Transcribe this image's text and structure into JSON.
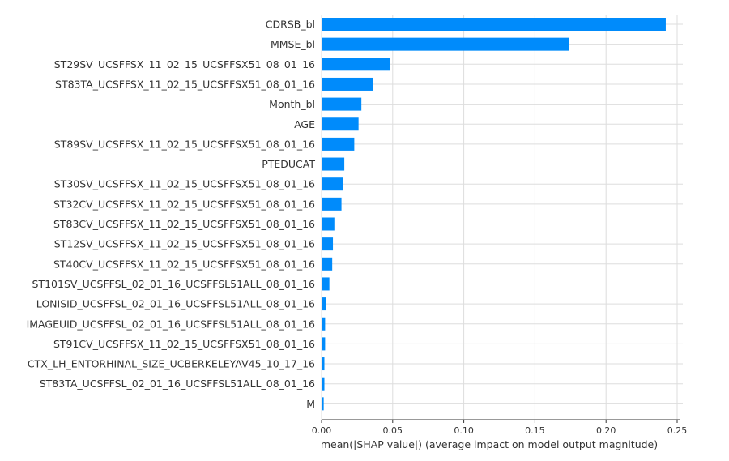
{
  "chart_data": {
    "type": "bar",
    "orientation": "horizontal",
    "categories": [
      "CDRSB_bl",
      "MMSE_bl",
      "ST29SV_UCSFFSX_11_02_15_UCSFFSX51_08_01_16",
      "ST83TA_UCSFFSX_11_02_15_UCSFFSX51_08_01_16",
      "Month_bl",
      "AGE",
      "ST89SV_UCSFFSX_11_02_15_UCSFFSX51_08_01_16",
      "PTEDUCAT",
      "ST30SV_UCSFFSX_11_02_15_UCSFFSX51_08_01_16",
      "ST32CV_UCSFFSX_11_02_15_UCSFFSX51_08_01_16",
      "ST83CV_UCSFFSX_11_02_15_UCSFFSX51_08_01_16",
      "ST12SV_UCSFFSX_11_02_15_UCSFFSX51_08_01_16",
      "ST40CV_UCSFFSX_11_02_15_UCSFFSX51_08_01_16",
      "ST101SV_UCSFFSL_02_01_16_UCSFFSL51ALL_08_01_16",
      "LONISID_UCSFFSL_02_01_16_UCSFFSL51ALL_08_01_16",
      "IMAGEUID_UCSFFSL_02_01_16_UCSFFSL51ALL_08_01_16",
      "ST91CV_UCSFFSX_11_02_15_UCSFFSX51_08_01_16",
      "CTX_LH_ENTORHINAL_SIZE_UCBERKELEYAV45_10_17_16",
      "ST83TA_UCSFFSL_02_01_16_UCSFFSL51ALL_08_01_16",
      "M"
    ],
    "values": [
      0.242,
      0.174,
      0.048,
      0.036,
      0.028,
      0.026,
      0.023,
      0.016,
      0.015,
      0.014,
      0.009,
      0.008,
      0.0075,
      0.0055,
      0.003,
      0.0025,
      0.0025,
      0.002,
      0.002,
      0.0015
    ],
    "xlabel": "mean(|SHAP value|) (average impact on model output magnitude)",
    "xlim": [
      0,
      0.25
    ],
    "xticks": [
      0.0,
      0.05,
      0.1,
      0.15,
      0.2,
      0.25
    ],
    "xtick_labels": [
      "0.00",
      "0.05",
      "0.10",
      "0.15",
      "0.20",
      "0.25"
    ],
    "bar_color": "#008bfb",
    "grid": true
  }
}
